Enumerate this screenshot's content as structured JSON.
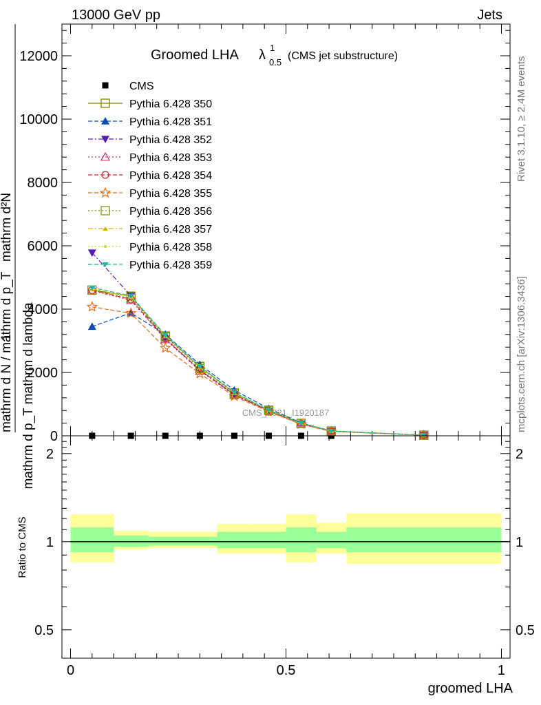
{
  "header": {
    "left": "13000 GeV pp",
    "right": "Jets"
  },
  "side_text": {
    "rivet": "Rivet 3.1.10, ≥ 2.4M events",
    "mcplots": "mcplots.cern.ch [arXiv:1306.3436]"
  },
  "watermark": "CMS_2021_I1920187",
  "chart_data": [
    {
      "type": "line",
      "title": "Groomed LHA",
      "title_symbol": "λ",
      "title_sup": "1",
      "title_sub": "0.5",
      "title_suffix": "(CMS jet substructure)",
      "ylabel_top": "mathrm d²N",
      "ylabel_bottom": "mathrm d p_T mathrm d lambda",
      "ylabel_prefix_num": "1",
      "ylabel_prefix_den": "mathrm d N / mathrm d p_T",
      "ylim": [
        0,
        13000
      ],
      "yticks": [
        0,
        2000,
        4000,
        6000,
        8000,
        10000,
        12000
      ],
      "ytick_labels": [
        "0",
        "2000",
        "4000",
        "6000",
        "8000",
        "10000",
        "12000"
      ],
      "xlim": [
        -0.02,
        1.02
      ],
      "x": [
        0.05,
        0.14,
        0.22,
        0.3,
        0.38,
        0.46,
        0.535,
        0.605,
        0.82
      ],
      "series": [
        {
          "name": "CMS",
          "color": "#000000",
          "marker": "square-filled",
          "dash": "none",
          "values": [
            0,
            0,
            0,
            0,
            0,
            0,
            0,
            0,
            0
          ]
        },
        {
          "name": "Pythia 6.428 350",
          "color": "#808000",
          "marker": "square-open",
          "dash": "solid",
          "values": [
            4600,
            4410,
            3150,
            2190,
            1350,
            810,
            395,
            150,
            20
          ]
        },
        {
          "name": "Pythia 6.428 351",
          "color": "#0b4db3",
          "marker": "triangle-up-filled",
          "dash": "dashed",
          "values": [
            3450,
            3880,
            3200,
            2250,
            1440,
            860,
            410,
            155,
            20
          ]
        },
        {
          "name": "Pythia 6.428 352",
          "color": "#5a1ab8",
          "marker": "triangle-down-filled",
          "dash": "dashdot",
          "values": [
            5780,
            4420,
            3060,
            2080,
            1300,
            790,
            380,
            145,
            20
          ]
        },
        {
          "name": "Pythia 6.428 353",
          "color": "#c0306a",
          "marker": "triangle-up-open",
          "dash": "dotted",
          "values": [
            4580,
            4280,
            3040,
            2050,
            1280,
            780,
            375,
            140,
            20
          ]
        },
        {
          "name": "Pythia 6.428 354",
          "color": "#d0202a",
          "marker": "circle-open",
          "dash": "dashed",
          "values": [
            4600,
            4310,
            3070,
            2080,
            1300,
            790,
            380,
            145,
            20
          ]
        },
        {
          "name": "Pythia 6.428 355",
          "color": "#e86a1a",
          "marker": "star-open",
          "dash": "dashed",
          "values": [
            4070,
            3870,
            2770,
            1960,
            1250,
            760,
            365,
            140,
            20
          ]
        },
        {
          "name": "Pythia 6.428 356",
          "color": "#7a9a10",
          "marker": "square-open",
          "dash": "dotted",
          "values": [
            4600,
            4340,
            3130,
            2130,
            1330,
            800,
            390,
            150,
            20
          ]
        },
        {
          "name": "Pythia 6.428 357",
          "color": "#d7b300",
          "marker": "tri-filled-small",
          "dash": "dashdot",
          "values": [
            4640,
            4390,
            3150,
            2160,
            1350,
            805,
            392,
            150,
            20
          ]
        },
        {
          "name": "Pythia 6.428 358",
          "color": "#b8e020",
          "marker": "dot",
          "dash": "dotted",
          "values": [
            4650,
            4400,
            3160,
            2170,
            1355,
            808,
            395,
            150,
            20
          ]
        },
        {
          "name": "Pythia 6.428 359",
          "color": "#20b8a0",
          "marker": "tri-down-filled",
          "dash": "dashed",
          "values": [
            4680,
            4420,
            3180,
            2190,
            1370,
            815,
            398,
            152,
            20
          ]
        }
      ]
    },
    {
      "type": "area",
      "ylabel": "Ratio to CMS",
      "xlabel": "groomed LHA",
      "ylim": [
        0.4,
        2.3
      ],
      "yscale": "log",
      "ytick_labels": [
        "0.5",
        "1",
        "2"
      ],
      "yticks": [
        0.5,
        1,
        2
      ],
      "xticks": [
        0,
        0.5,
        1
      ],
      "xtick_labels": [
        "0",
        "0.5",
        "1"
      ],
      "bins": [
        0.0,
        0.1,
        0.18,
        0.26,
        0.34,
        0.42,
        0.5,
        0.57,
        0.64,
        1.0
      ],
      "band_outer": [
        [
          0.85,
          1.24
        ],
        [
          0.94,
          1.09
        ],
        [
          0.95,
          1.08
        ],
        [
          0.95,
          1.08
        ],
        [
          0.91,
          1.15
        ],
        [
          0.91,
          1.15
        ],
        [
          0.85,
          1.24
        ],
        [
          0.91,
          1.16
        ],
        [
          0.84,
          1.25
        ]
      ],
      "band_inner": [
        [
          0.92,
          1.12
        ],
        [
          0.96,
          1.05
        ],
        [
          0.97,
          1.04
        ],
        [
          0.97,
          1.04
        ],
        [
          0.95,
          1.08
        ],
        [
          0.95,
          1.08
        ],
        [
          0.92,
          1.12
        ],
        [
          0.95,
          1.08
        ],
        [
          0.92,
          1.12
        ]
      ],
      "colors": {
        "outer": "#ffff99",
        "inner": "#99ff99",
        "line": "#000000"
      }
    }
  ]
}
